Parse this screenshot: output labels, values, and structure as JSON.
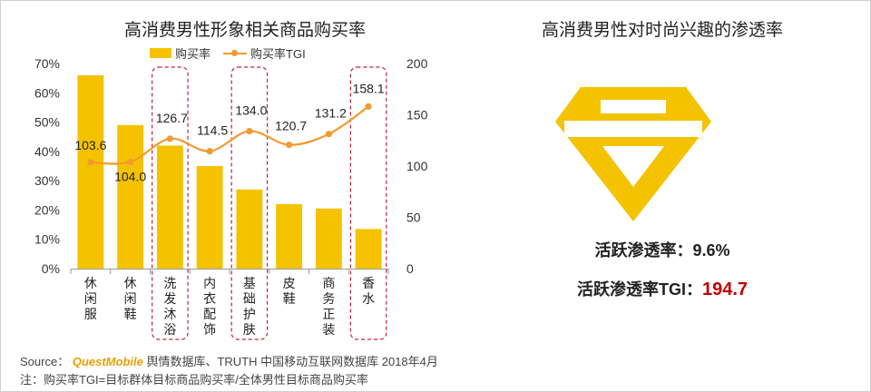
{
  "left_chart": {
    "title": "高消费男性形象相关商品购买率",
    "legend": {
      "bar_label": "购买率",
      "line_label": "购买率TGI"
    }
  },
  "right_panel": {
    "title": "高消费男性对时尚兴趣的渗透率",
    "active_rate_label": "活跃渗透率：",
    "active_rate_value": "9.6%",
    "tgi_label": "活跃渗透率TGI：",
    "tgi_value": "194.7",
    "icon": "diamond-icon",
    "icon_color": "#F5C200"
  },
  "footer": {
    "source_prefix": "Source：",
    "source_brand": "QuestMobile",
    "source_rest": "舆情数据库、TRUTH 中国移动互联网数据库 2018年4月",
    "note": "注：购买率TGI=目标群体目标商品购买率/全体男性目标商品购买率"
  },
  "colors": {
    "bar": "#F5C200",
    "line": "#F29A2E",
    "highlight_box": "#C0203A",
    "emphasis_value": "#C00000"
  },
  "chart_data": {
    "type": "bar",
    "categories": [
      "休闲服",
      "休闲鞋",
      "洗发沐浴",
      "内衣配饰",
      "基础护肤",
      "皮鞋",
      "商务正装",
      "香水"
    ],
    "series": [
      {
        "name": "购买率",
        "type": "bar",
        "axis": "left",
        "values": [
          66,
          49,
          42,
          35,
          27,
          22,
          20.5,
          13.5
        ]
      },
      {
        "name": "购买率TGI",
        "type": "line",
        "axis": "right",
        "values": [
          103.6,
          104.0,
          126.7,
          114.5,
          134.0,
          120.7,
          131.2,
          158.1
        ]
      }
    ],
    "line_labels": [
      "103.6",
      "104.0",
      "126.7",
      "114.5",
      "134.0",
      "120.7",
      "131.2",
      "158.1"
    ],
    "y_left": {
      "min": 0,
      "max": 70,
      "ticks": [
        "0%",
        "10%",
        "20%",
        "30%",
        "40%",
        "50%",
        "60%",
        "70%"
      ]
    },
    "y_right": {
      "min": 0,
      "max": 200,
      "ticks": [
        "0",
        "50",
        "100",
        "150",
        "200"
      ]
    },
    "highlighted_categories": [
      "洗发沐浴",
      "基础护肤",
      "香水"
    ],
    "grid": false,
    "legend_position": "top"
  }
}
